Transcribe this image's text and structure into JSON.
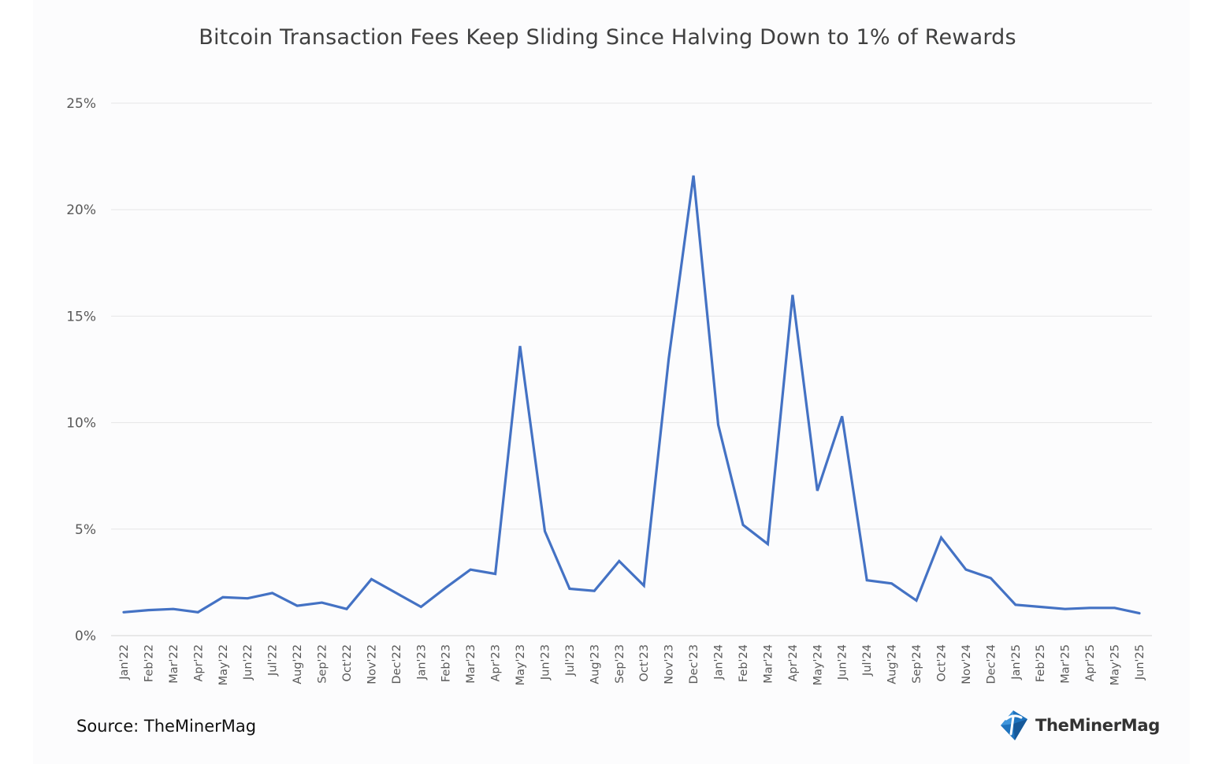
{
  "chart_data": {
    "type": "line",
    "title": "Bitcoin Transaction Fees Keep Sliding Since Halving Down to 1% of Rewards",
    "xlabel": "",
    "ylabel": "",
    "ylim": [
      0,
      25
    ],
    "y_tick_values": [
      0,
      5,
      10,
      15,
      20,
      25
    ],
    "y_tick_labels": [
      "0%",
      "5%",
      "10%",
      "15%",
      "20%",
      "25%"
    ],
    "grid": true,
    "categories": [
      "Jan'22",
      "Feb'22",
      "Mar'22",
      "Apr'22",
      "May'22",
      "Jun'22",
      "Jul'22",
      "Aug'22",
      "Sep'22",
      "Oct'22",
      "Nov'22",
      "Dec'22",
      "Jan'23",
      "Feb'23",
      "Mar'23",
      "Apr'23",
      "May'23",
      "Jun'23",
      "Jul'23",
      "Aug'23",
      "Sep'23",
      "Oct'23",
      "Nov'23",
      "Dec'23",
      "Jan'24",
      "Feb'24",
      "Mar'24",
      "Apr'24",
      "May'24",
      "Jun'24",
      "Jul'24",
      "Aug'24",
      "Sep'24",
      "Oct'24",
      "Nov'24",
      "Dec'24",
      "Jan'25",
      "Feb'25",
      "Mar'25",
      "Apr'25",
      "May'25",
      "Jun'25"
    ],
    "series": [
      {
        "color": "#4472c4",
        "values": [
          1.1,
          1.2,
          1.25,
          1.1,
          1.8,
          1.75,
          2.0,
          1.4,
          1.55,
          1.25,
          2.65,
          2.0,
          1.35,
          2.25,
          3.1,
          2.9,
          13.6,
          4.9,
          2.2,
          2.1,
          3.5,
          2.35,
          13.0,
          21.6,
          9.9,
          5.2,
          4.3,
          16.0,
          6.8,
          10.3,
          2.6,
          2.45,
          1.65,
          4.6,
          3.1,
          2.7,
          1.45,
          1.35,
          1.25,
          1.3,
          1.3,
          1.05
        ]
      }
    ]
  },
  "footer": {
    "source": "Source: TheMinerMag",
    "brand_name": "TheMinerMag",
    "brand_icon": "pickaxe-logo-icon",
    "brand_color": "#1e73be"
  }
}
